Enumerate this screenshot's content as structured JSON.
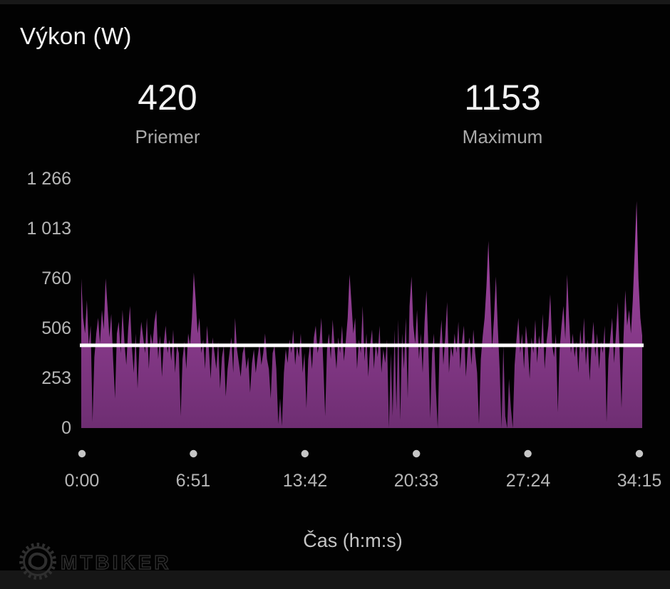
{
  "header": {
    "title": "Výkon (W)"
  },
  "stats": {
    "average": {
      "value": "420",
      "label": "Priemer"
    },
    "maximum": {
      "value": "1153",
      "label": "Maximum"
    }
  },
  "watermark": {
    "text": "MTBIKER",
    "icon": "gear-icon"
  },
  "chart_data": {
    "type": "area",
    "title": "Výkon (W)",
    "xlabel": "Čas (h:m:s)",
    "ylabel": "Výkon (W)",
    "ylim": [
      0,
      1266
    ],
    "x_range_seconds": [
      0,
      2055
    ],
    "grid": false,
    "legend": "none",
    "average_w": 420,
    "max_w": 1153,
    "y_ticks": [
      {
        "value": 0,
        "label": "0"
      },
      {
        "value": 253,
        "label": "253"
      },
      {
        "value": 506,
        "label": "506"
      },
      {
        "value": 760,
        "label": "760"
      },
      {
        "value": 1013,
        "label": "1 013"
      },
      {
        "value": 1266,
        "label": "1 266"
      }
    ],
    "x_tick_labels": [
      "0:00",
      "6:51",
      "13:42",
      "20:33",
      "27:24",
      "34:15"
    ],
    "colors": {
      "area_top": "#b04cb0",
      "area_bottom": "#6e2e72",
      "average_line": "#ffffff",
      "tick_dot": "#c6c6c6",
      "background": "#020202"
    },
    "series": [
      {
        "name": "power_w",
        "values": [
          760,
          560,
          480,
          650,
          420,
          520,
          30,
          360,
          480,
          560,
          430,
          600,
          500,
          760,
          620,
          460,
          580,
          350,
          150,
          480,
          540,
          380,
          600,
          440,
          320,
          500,
          620,
          410,
          280,
          480,
          200,
          420,
          540,
          460,
          380,
          560,
          300,
          480,
          420,
          540,
          600,
          350,
          470,
          260,
          430,
          520,
          380,
          450,
          340,
          500,
          280,
          420,
          380,
          60,
          350,
          440,
          300,
          480,
          420,
          560,
          790,
          650,
          480,
          560,
          380,
          450,
          300,
          520,
          400,
          250,
          460,
          380,
          300,
          440,
          200,
          360,
          420,
          160,
          300,
          380,
          460,
          280,
          560,
          400,
          330,
          260,
          380,
          420,
          300,
          360,
          180,
          330,
          400,
          280,
          360,
          430,
          320,
          380,
          480,
          350,
          300,
          150,
          380,
          420,
          300,
          20,
          150,
          10,
          280,
          400,
          330,
          450,
          380,
          500,
          320,
          420,
          360,
          480,
          280,
          380,
          100,
          350,
          430,
          300,
          460,
          520,
          380,
          440,
          560,
          330,
          60,
          400,
          480,
          350,
          550,
          420,
          300,
          460,
          380,
          520,
          340,
          440,
          560,
          780,
          640,
          480,
          560,
          300,
          450,
          380,
          620,
          340,
          480,
          260,
          420,
          500,
          300,
          440,
          360,
          520,
          280,
          400,
          330,
          450,
          0,
          380,
          60,
          500,
          90,
          550,
          40,
          480,
          300,
          560,
          150,
          620,
          770,
          520,
          430,
          600,
          350,
          480,
          280,
          540,
          700,
          420,
          50,
          380,
          480,
          200,
          0,
          420,
          550,
          320,
          460,
          640,
          280,
          420,
          360,
          480,
          380,
          540,
          300,
          440,
          520,
          260,
          400,
          460,
          320,
          500,
          380,
          280,
          20,
          350,
          470,
          560,
          720,
          950,
          680,
          400,
          560,
          770,
          520,
          300,
          0,
          420,
          60,
          0,
          250,
          100,
          0,
          320,
          450,
          560,
          380,
          480,
          300,
          520,
          420,
          250,
          460,
          380,
          550,
          330,
          470,
          400,
          580,
          300,
          440,
          520,
          680,
          420,
          360,
          480,
          80,
          400,
          520,
          620,
          450,
          780,
          560,
          380,
          480,
          360,
          440,
          280,
          500,
          380,
          560,
          320,
          450,
          240,
          420,
          540,
          360,
          480,
          300,
          440,
          380,
          520,
          30,
          350,
          460,
          560,
          330,
          480,
          640,
          380,
          100,
          450,
          700,
          520,
          600,
          480,
          650,
          900,
          1153,
          760,
          560,
          470
        ]
      }
    ]
  }
}
